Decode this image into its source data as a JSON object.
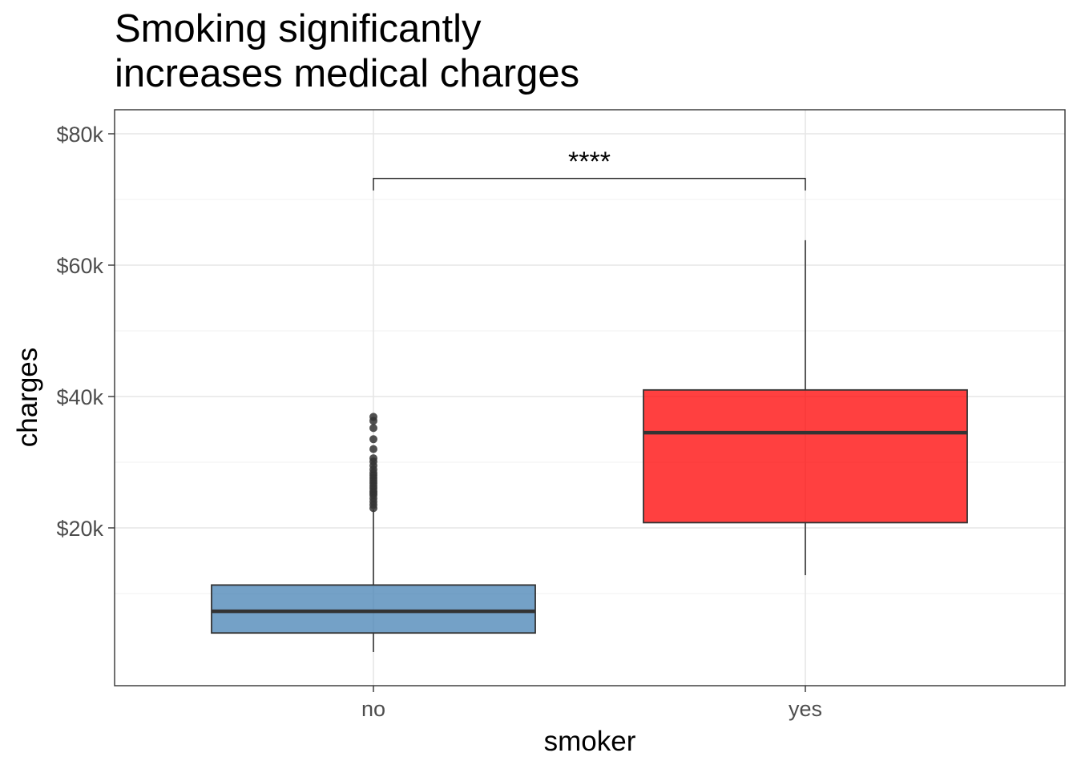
{
  "chart_data": {
    "type": "box",
    "title_lines": [
      "Smoking significantly",
      "increases medical charges"
    ],
    "xlabel": "smoker",
    "ylabel": "charges",
    "ylim": [
      -3800,
      84000
    ],
    "y_ticks": [
      {
        "value": 20000,
        "label": "$20k"
      },
      {
        "value": 40000,
        "label": "$40k"
      },
      {
        "value": 60000,
        "label": "$60k"
      },
      {
        "value": 80000,
        "label": "$80k"
      }
    ],
    "grid": true,
    "categories": [
      "no",
      "yes"
    ],
    "boxes": [
      {
        "category": "no",
        "whisker_low": 1100,
        "q1": 4000,
        "median": 7300,
        "q3": 11300,
        "whisker_high": 22800,
        "color": "#4682B4",
        "outliers": [
          23000,
          23500,
          24000,
          24500,
          25000,
          25300,
          25600,
          26000,
          26400,
          26800,
          27200,
          27600,
          28000,
          28400,
          28900,
          29500,
          30100,
          30600,
          32000,
          33500,
          35200,
          36300,
          36900
        ]
      },
      {
        "category": "yes",
        "whisker_low": 12800,
        "q1": 20800,
        "median": 34500,
        "q3": 41000,
        "whisker_high": 63800,
        "color": "#FF0000",
        "outliers": []
      }
    ],
    "significance": {
      "label": "****",
      "y": 73200,
      "groups": [
        "no",
        "yes"
      ]
    }
  }
}
